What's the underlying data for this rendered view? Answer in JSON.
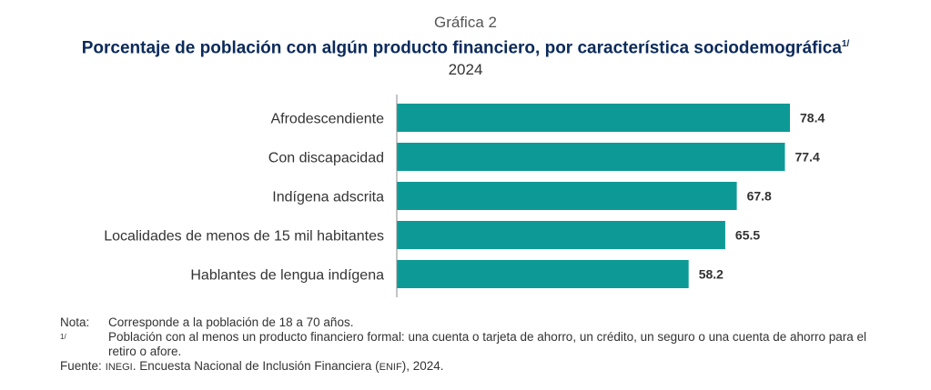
{
  "header": {
    "supertitle": "Gráfica 2",
    "title": "Porcentaje de población con algún producto financiero, por característica sociodemográfica",
    "title_footnote": "1/",
    "year": "2024"
  },
  "chart_data": {
    "type": "bar",
    "orientation": "horizontal",
    "categories": [
      "Afrodescendiente",
      "Con discapacidad",
      "Indígena adscrita",
      "Localidades de menos de 15 mil habitantes",
      "Hablantes de lengua indígena"
    ],
    "values": [
      78.4,
      77.4,
      67.8,
      65.5,
      58.2
    ],
    "value_labels": [
      "78.4",
      "77.4",
      "67.8",
      "65.5",
      "58.2"
    ],
    "xlim": [
      0,
      78.4
    ],
    "bar_color": "#0d9a96",
    "axis_color": "#8a8a8a",
    "grid": false
  },
  "notes": {
    "note_label": "Nota:",
    "note_text": "Corresponde a la población de 18 a 70 años.",
    "footnote_label": "1/",
    "footnote_text": "Población con al menos un producto financiero formal: una cuenta o tarjeta de ahorro, un crédito, un seguro o una cuenta de ahorro para el retiro o afore.",
    "source_label": "Fuente:",
    "source_org": "INEGI",
    "source_text_1": ". Encuesta Nacional de Inclusión Financiera (",
    "source_acronym": "ENIF",
    "source_text_2": "), 2024."
  }
}
